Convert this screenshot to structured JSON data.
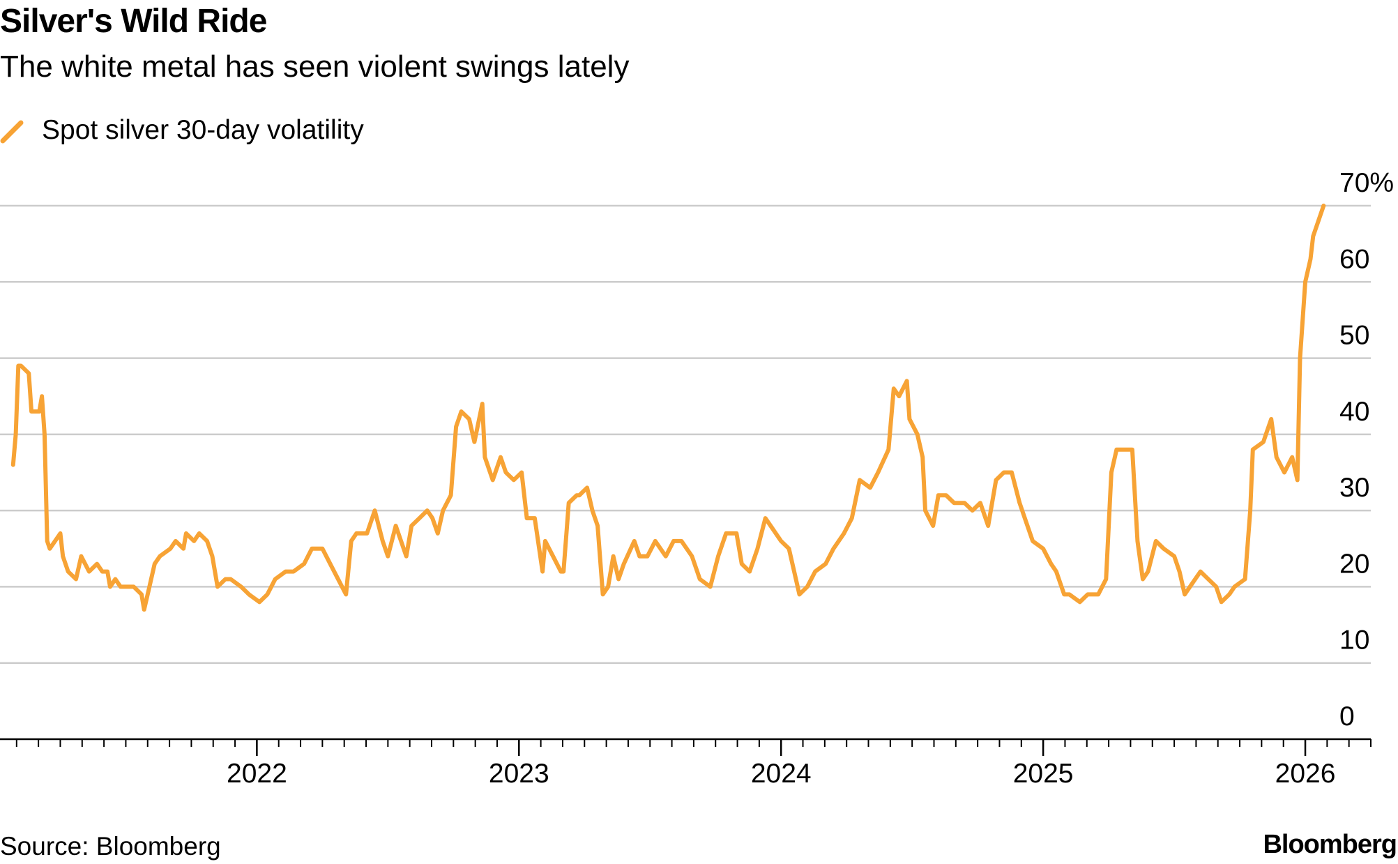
{
  "chart_data": {
    "type": "line",
    "title": "Silver's Wild Ride",
    "subtitle": "The white metal has seen violent swings lately",
    "source": "Source: Bloomberg",
    "brand": "Bloomberg",
    "legend": "top-left",
    "grid": true,
    "x": [
      2021.07,
      2021.08,
      2021.09,
      2021.1,
      2021.13,
      2021.14,
      2021.16,
      2021.17,
      2021.18,
      2021.19,
      2021.2,
      2021.21,
      2021.23,
      2021.25,
      2021.26,
      2021.28,
      2021.31,
      2021.33,
      2021.36,
      2021.39,
      2021.41,
      2021.43,
      2021.44,
      2021.46,
      2021.48,
      2021.5,
      2021.53,
      2021.56,
      2021.57,
      2021.59,
      2021.61,
      2021.63,
      2021.67,
      2021.69,
      2021.72,
      2021.73,
      2021.76,
      2021.78,
      2021.81,
      2021.83,
      2021.85,
      2021.88,
      2021.9,
      2021.94,
      2021.97,
      2022.01,
      2022.04,
      2022.07,
      2022.11,
      2022.14,
      2022.18,
      2022.21,
      2022.25,
      2022.28,
      2022.31,
      2022.34,
      2022.36,
      2022.38,
      2022.42,
      2022.45,
      2022.48,
      2022.5,
      2022.53,
      2022.57,
      2022.59,
      2022.62,
      2022.65,
      2022.67,
      2022.69,
      2022.71,
      2022.74,
      2022.76,
      2022.78,
      2022.81,
      2022.83,
      2022.86,
      2022.87,
      2022.9,
      2022.93,
      2022.95,
      2022.98,
      2023.01,
      2023.03,
      2023.06,
      2023.09,
      2023.1,
      2023.13,
      2023.16,
      2023.17,
      2023.19,
      2023.22,
      2023.23,
      2023.26,
      2023.28,
      2023.3,
      2023.32,
      2023.34,
      2023.36,
      2023.38,
      2023.4,
      2023.44,
      2023.46,
      2023.49,
      2023.52,
      2023.56,
      2023.59,
      2023.62,
      2023.66,
      2023.69,
      2023.73,
      2023.76,
      2023.79,
      2023.83,
      2023.85,
      2023.88,
      2023.91,
      2023.94,
      2023.96,
      2024.0,
      2024.03,
      2024.05,
      2024.07,
      2024.1,
      2024.13,
      2024.17,
      2024.2,
      2024.24,
      2024.27,
      2024.3,
      2024.34,
      2024.37,
      2024.41,
      2024.43,
      2024.45,
      2024.48,
      2024.49,
      2024.52,
      2024.54,
      2024.55,
      2024.58,
      2024.6,
      2024.63,
      2024.66,
      2024.7,
      2024.73,
      2024.76,
      2024.79,
      2024.82,
      2024.85,
      2024.88,
      2024.91,
      2024.93,
      2024.96,
      2025.0,
      2025.03,
      2025.05,
      2025.08,
      2025.1,
      2025.14,
      2025.17,
      2025.21,
      2025.24,
      2025.26,
      2025.28,
      2025.31,
      2025.34,
      2025.36,
      2025.38,
      2025.4,
      2025.43,
      2025.46,
      2025.5,
      2025.52,
      2025.54,
      2025.56,
      2025.6,
      2025.63,
      2025.66,
      2025.68,
      2025.71,
      2025.73,
      2025.77,
      2025.79,
      2025.8,
      2025.84,
      2025.85,
      2025.87,
      2025.89,
      2025.92,
      2025.95,
      2025.97,
      2025.98,
      2026.0,
      2026.02,
      2026.03,
      2026.05,
      2026.07
    ],
    "series": [
      {
        "name": "Spot silver 30-day volatility",
        "color": "#f7a335",
        "values": [
          36,
          40,
          49,
          49,
          48,
          43,
          43,
          43,
          45,
          40,
          26,
          25,
          26,
          27,
          24,
          22,
          21,
          24,
          22,
          23,
          22,
          22,
          20,
          21,
          20,
          20,
          20,
          19,
          17,
          20,
          23,
          24,
          25,
          26,
          25,
          27,
          26,
          27,
          26,
          24,
          20,
          21,
          21,
          20,
          19,
          18,
          19,
          21,
          22,
          22,
          23,
          25,
          25,
          23,
          21,
          19,
          26,
          27,
          27,
          30,
          26,
          24,
          28,
          24,
          28,
          29,
          30,
          29,
          27,
          30,
          32,
          41,
          43,
          42,
          39,
          44,
          37,
          34,
          37,
          35,
          34,
          35,
          29,
          29,
          22,
          26,
          24,
          22,
          22,
          31,
          32,
          32,
          33,
          30,
          28,
          19,
          20,
          24,
          21,
          23,
          26,
          24,
          24,
          26,
          24,
          26,
          26,
          24,
          21,
          20,
          24,
          27,
          27,
          23,
          22,
          25,
          29,
          28,
          26,
          25,
          22,
          19,
          20,
          22,
          23,
          25,
          27,
          29,
          34,
          33,
          35,
          38,
          46,
          45,
          47,
          42,
          40,
          37,
          30,
          28,
          32,
          32,
          31,
          31,
          30,
          31,
          28,
          34,
          35,
          35,
          31,
          29,
          26,
          25,
          23,
          22,
          19,
          19,
          18,
          19,
          19,
          21,
          35,
          38,
          38,
          38,
          26,
          21,
          22,
          26,
          25,
          24,
          22,
          19,
          20,
          22,
          21,
          20,
          18,
          19,
          20,
          21,
          30,
          38,
          39,
          40,
          42,
          37,
          35,
          37,
          34,
          50,
          60,
          63,
          66,
          68,
          70
        ]
      }
    ],
    "xlim": [
      2021.02,
      2026.25
    ],
    "xticks": [
      2022,
      2023,
      2024,
      2025,
      2026
    ],
    "ylim": [
      0,
      70
    ],
    "yticks": [
      0,
      10,
      20,
      30,
      40,
      50,
      60,
      {
        "value": 70,
        "label": "70%"
      }
    ]
  }
}
